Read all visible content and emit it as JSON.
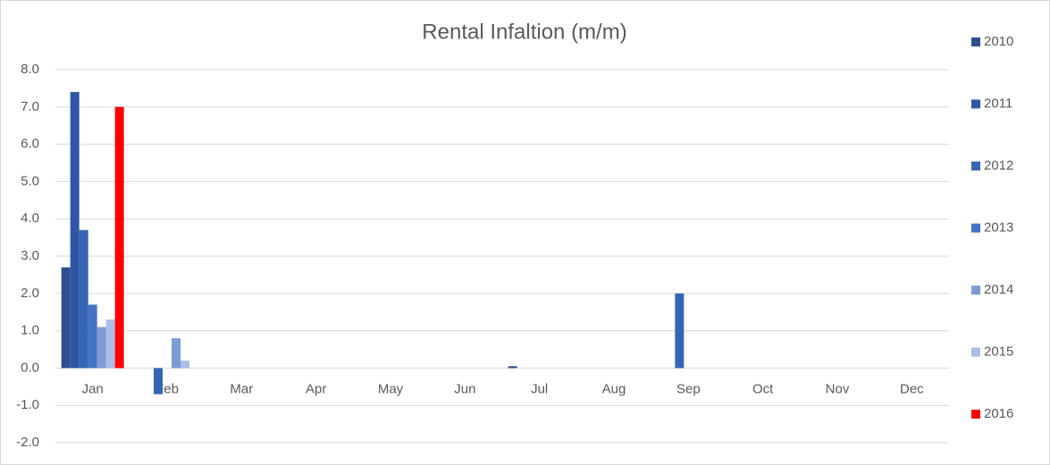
{
  "chart_data": {
    "type": "bar",
    "title": "Rental Infaltion (m/m)",
    "categories": [
      "Jan",
      "Feb",
      "Mar",
      "Apr",
      "May",
      "Jun",
      "Jul",
      "Aug",
      "Sep",
      "Oct",
      "Nov",
      "Dec"
    ],
    "series": [
      {
        "name": "2010",
        "color": "#2e4f8f",
        "values": [
          2.7,
          null,
          null,
          null,
          null,
          null,
          0.05,
          null,
          null,
          null,
          null,
          null
        ]
      },
      {
        "name": "2011",
        "color": "#2f56a5",
        "values": [
          7.4,
          null,
          null,
          null,
          null,
          null,
          null,
          null,
          null,
          null,
          null,
          null
        ]
      },
      {
        "name": "2012",
        "color": "#3565b5",
        "values": [
          3.7,
          -0.7,
          null,
          null,
          null,
          null,
          null,
          null,
          2.0,
          null,
          null,
          null
        ]
      },
      {
        "name": "2013",
        "color": "#4472c4",
        "values": [
          1.7,
          null,
          null,
          null,
          null,
          null,
          null,
          null,
          null,
          null,
          null,
          null
        ]
      },
      {
        "name": "2014",
        "color": "#7e9bd6",
        "values": [
          1.1,
          0.8,
          null,
          null,
          null,
          null,
          null,
          null,
          null,
          null,
          null,
          null
        ]
      },
      {
        "name": "2015",
        "color": "#a9bde6",
        "values": [
          1.3,
          0.2,
          null,
          null,
          null,
          null,
          null,
          null,
          null,
          null,
          null,
          null
        ]
      },
      {
        "name": "2016",
        "color": "#ff0000",
        "values": [
          7.0,
          null,
          null,
          null,
          null,
          null,
          null,
          null,
          null,
          null,
          null,
          null
        ]
      }
    ],
    "ylim": [
      -2,
      8
    ],
    "yticks": [
      {
        "value": -2,
        "label": "-2.0"
      },
      {
        "value": -1,
        "label": "-1.0"
      },
      {
        "value": 0,
        "label": "0.0"
      },
      {
        "value": 1,
        "label": "1.0"
      },
      {
        "value": 2,
        "label": "2.0"
      },
      {
        "value": 3,
        "label": "3.0"
      },
      {
        "value": 4,
        "label": "4.0"
      },
      {
        "value": 5,
        "label": "5.0"
      },
      {
        "value": 6,
        "label": "6.0"
      },
      {
        "value": 7,
        "label": "7.0"
      },
      {
        "value": 8,
        "label": "8.0"
      }
    ],
    "grid": true,
    "legend": "right"
  }
}
